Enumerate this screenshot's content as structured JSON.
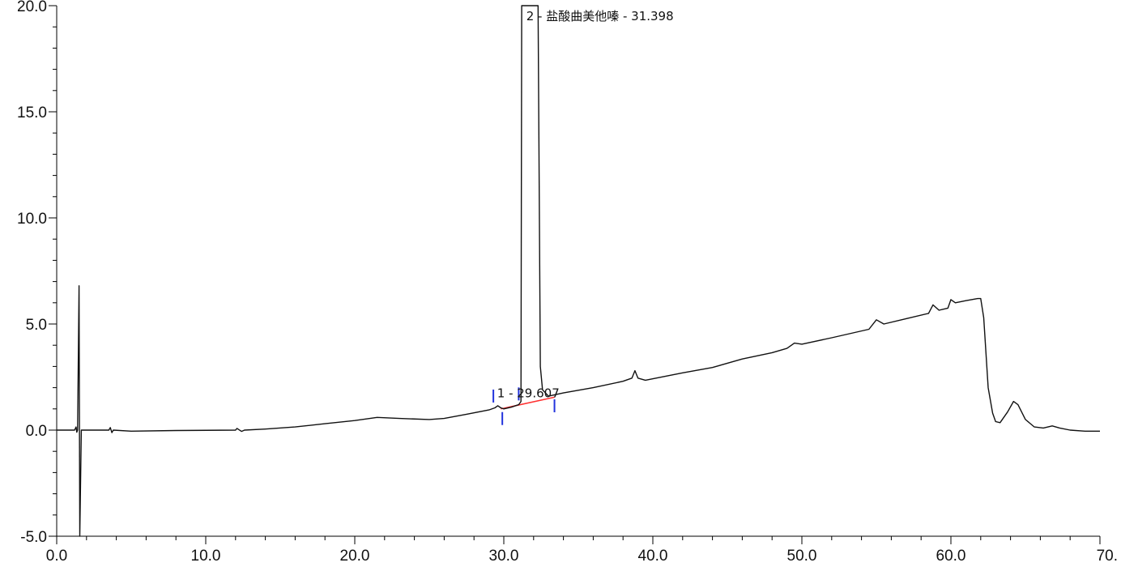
{
  "header": {
    "text": ""
  },
  "chart_data": {
    "type": "line",
    "title": "",
    "xlabel": "",
    "ylabel": "",
    "xlim": [
      0,
      70
    ],
    "ylim": [
      -5,
      20
    ],
    "x_ticks": [
      0,
      10,
      20,
      30,
      40,
      50,
      60,
      70
    ],
    "x_tick_labels": [
      "0.0",
      "10.0",
      "20.0",
      "30.0",
      "40.0",
      "50.0",
      "60.0",
      "70."
    ],
    "y_ticks": [
      -5,
      0,
      5,
      10,
      15,
      20
    ],
    "y_tick_labels": [
      "-5.0",
      "0.0",
      "5.0",
      "10.0",
      "15.0",
      "20.0"
    ],
    "grid": false,
    "series": [
      {
        "points": [
          [
            0.0,
            0.0
          ],
          [
            1.2,
            0.0
          ],
          [
            1.3,
            0.15
          ],
          [
            1.35,
            -0.1
          ],
          [
            1.4,
            0.0
          ],
          [
            1.5,
            6.8
          ],
          [
            1.55,
            -5.0
          ],
          [
            1.65,
            0.0
          ],
          [
            3.5,
            0.0
          ],
          [
            3.6,
            0.12
          ],
          [
            3.7,
            -0.12
          ],
          [
            3.8,
            0.0
          ],
          [
            5.0,
            -0.05
          ],
          [
            8.0,
            -0.02
          ],
          [
            12.0,
            0.0
          ],
          [
            12.1,
            0.08
          ],
          [
            12.4,
            -0.06
          ],
          [
            12.6,
            0.0
          ],
          [
            14.0,
            0.05
          ],
          [
            16.0,
            0.15
          ],
          [
            18.0,
            0.3
          ],
          [
            20.0,
            0.45
          ],
          [
            21.5,
            0.6
          ],
          [
            23.0,
            0.55
          ],
          [
            25.0,
            0.5
          ],
          [
            26.0,
            0.55
          ],
          [
            27.5,
            0.75
          ],
          [
            29.0,
            0.95
          ],
          [
            29.4,
            1.05
          ],
          [
            29.6,
            1.15
          ],
          [
            29.8,
            1.05
          ],
          [
            30.0,
            1.0
          ],
          [
            30.5,
            1.08
          ],
          [
            31.0,
            1.2
          ],
          [
            31.15,
            1.35
          ],
          [
            31.2,
            20.0
          ],
          [
            32.3,
            20.0
          ],
          [
            32.45,
            3.0
          ],
          [
            32.6,
            1.9
          ],
          [
            33.0,
            1.6
          ],
          [
            34.0,
            1.75
          ],
          [
            36.0,
            2.0
          ],
          [
            38.0,
            2.3
          ],
          [
            38.6,
            2.45
          ],
          [
            38.8,
            2.8
          ],
          [
            39.0,
            2.45
          ],
          [
            39.5,
            2.35
          ],
          [
            42.0,
            2.7
          ],
          [
            44.0,
            2.95
          ],
          [
            46.0,
            3.35
          ],
          [
            48.0,
            3.65
          ],
          [
            49.0,
            3.85
          ],
          [
            49.5,
            4.1
          ],
          [
            50.0,
            4.05
          ],
          [
            52.0,
            4.35
          ],
          [
            54.5,
            4.75
          ],
          [
            55.0,
            5.2
          ],
          [
            55.5,
            5.0
          ],
          [
            57.0,
            5.25
          ],
          [
            58.5,
            5.5
          ],
          [
            58.8,
            5.9
          ],
          [
            59.2,
            5.65
          ],
          [
            59.8,
            5.75
          ],
          [
            60.0,
            6.15
          ],
          [
            60.3,
            6.0
          ],
          [
            61.0,
            6.1
          ],
          [
            61.8,
            6.2
          ],
          [
            62.0,
            6.2
          ],
          [
            62.2,
            5.3
          ],
          [
            62.5,
            2.0
          ],
          [
            62.8,
            0.8
          ],
          [
            63.0,
            0.4
          ],
          [
            63.3,
            0.35
          ],
          [
            63.8,
            0.85
          ],
          [
            64.2,
            1.35
          ],
          [
            64.5,
            1.2
          ],
          [
            65.0,
            0.5
          ],
          [
            65.6,
            0.15
          ],
          [
            66.2,
            0.1
          ],
          [
            66.8,
            0.2
          ],
          [
            67.3,
            0.1
          ],
          [
            68.0,
            0.0
          ],
          [
            69.0,
            -0.05
          ],
          [
            70.0,
            -0.05
          ]
        ]
      }
    ],
    "peaks": [
      {
        "label": "1 - 29.607",
        "rt": 29.607
      },
      {
        "label": "2 - 盐酸曲美他嗪 - 31.398",
        "rt": 31.398
      }
    ],
    "baseline_segment": {
      "x": [
        29.8,
        33.4
      ],
      "y": [
        1.0,
        1.55
      ]
    },
    "integration_markers": [
      {
        "x": 29.3,
        "y": 1.3,
        "dir": "up"
      },
      {
        "x": 29.9,
        "y": 0.85,
        "dir": "down"
      },
      {
        "x": 31.0,
        "y": 1.4,
        "dir": "up"
      },
      {
        "x": 33.4,
        "y": 1.45,
        "dir": "down"
      }
    ],
    "colors": {
      "trace": "#111111",
      "baseline": "#ff3030",
      "markers": "#2233dd",
      "axis": "#000000"
    }
  }
}
